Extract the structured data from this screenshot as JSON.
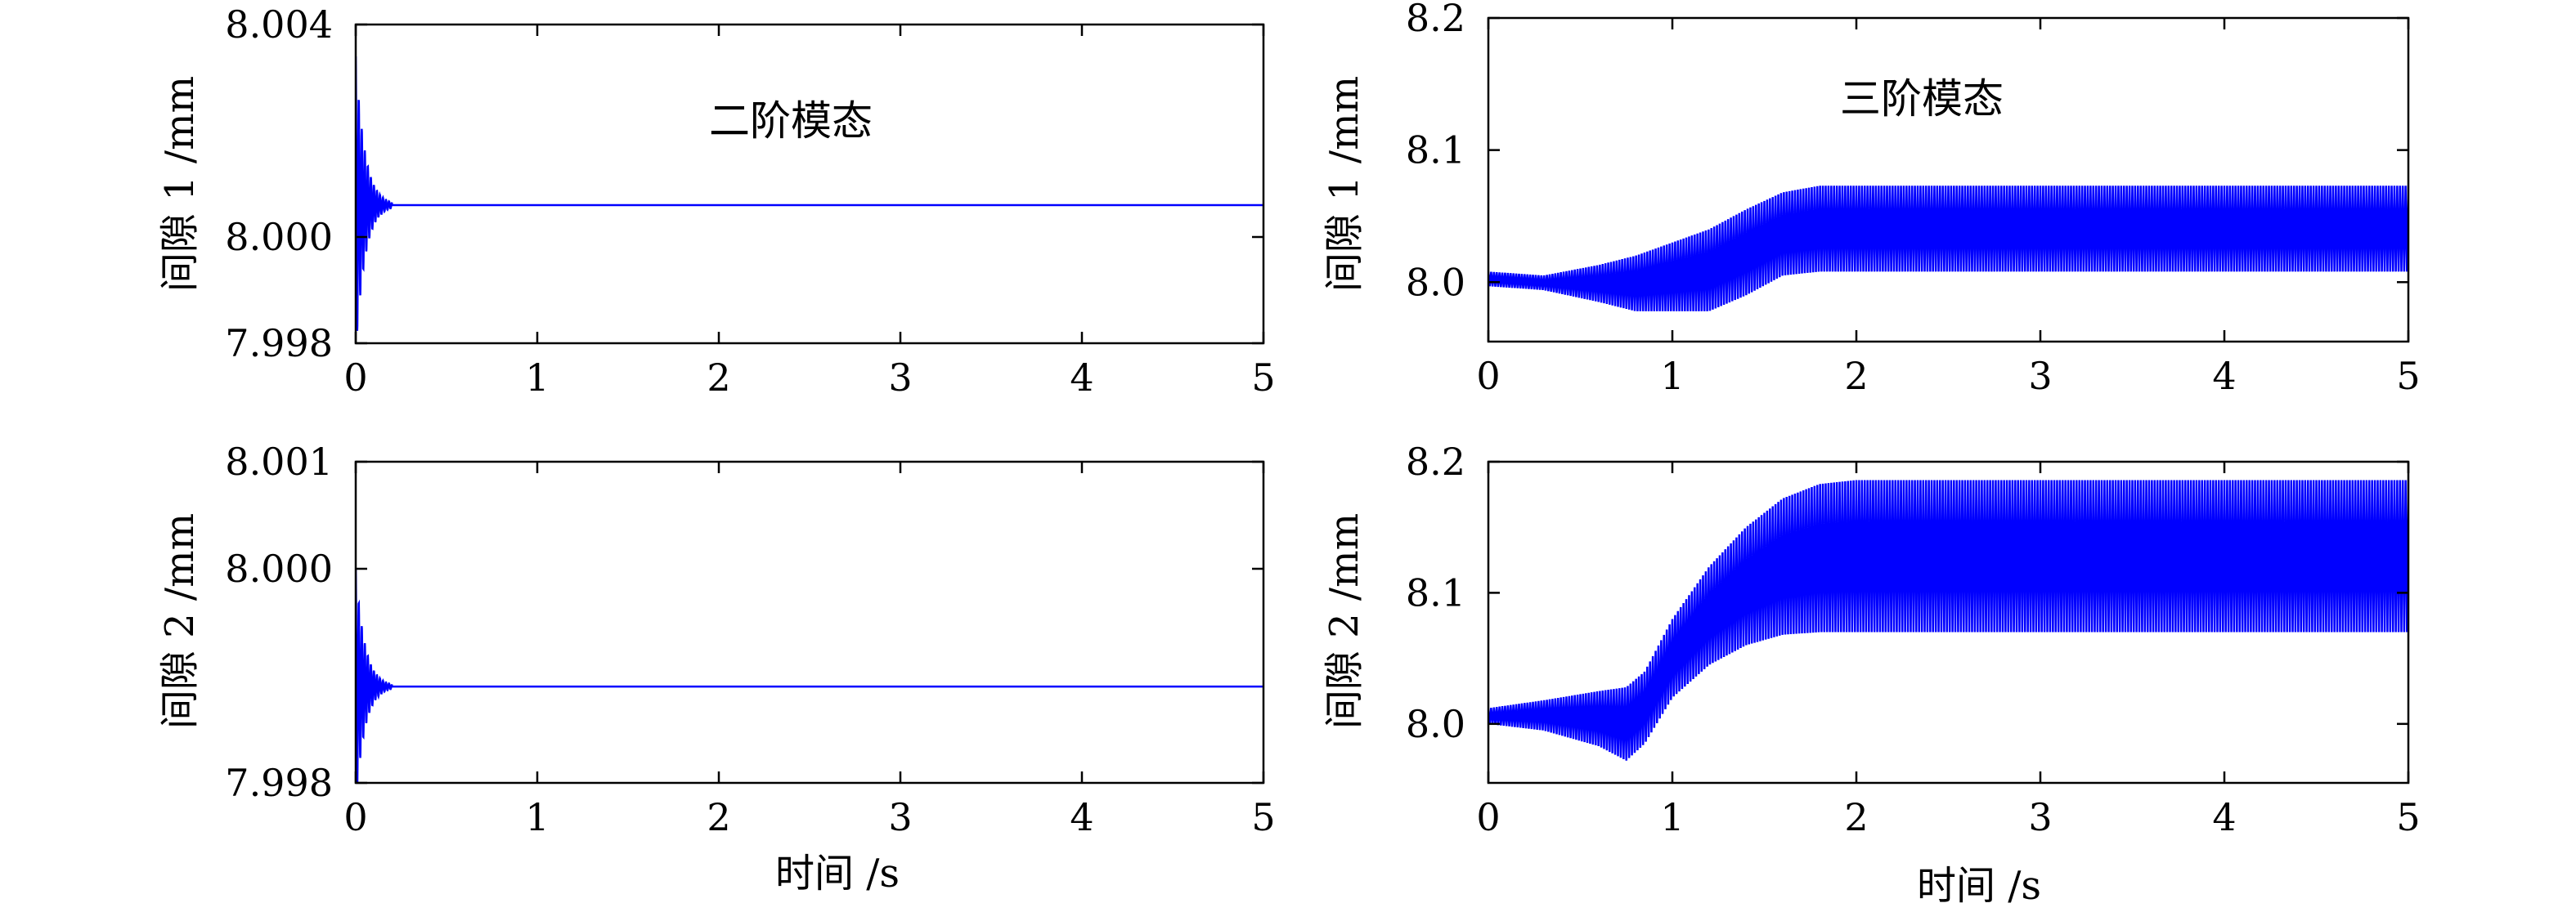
{
  "colors": {
    "series": "#0000ff",
    "axis": "#000000",
    "background": "#ffffff"
  },
  "chart_data": [
    {
      "type": "line",
      "panel": "top-left",
      "title": "",
      "annotation": "二阶模态",
      "xlabel": "",
      "ylabel": "间隙 1 /mm",
      "xlim": [
        0,
        5
      ],
      "ylim": [
        7.998,
        8.004
      ],
      "xticks": [
        "0",
        "1",
        "2",
        "3",
        "4",
        "5"
      ],
      "xtick_values": [
        0,
        1,
        2,
        3,
        4,
        5
      ],
      "yticks": [
        "7.998",
        "8.000",
        "8.004"
      ],
      "ytick_values": [
        7.998,
        8.0,
        8.004
      ],
      "grid": false,
      "series": [
        {
          "kind": "decay",
          "steady": 8.0006,
          "initial_amplitude": 0.0028,
          "decay_time": 0.05,
          "decay_end": 0.2,
          "oscillation_hz": 60
        }
      ]
    },
    {
      "type": "line",
      "panel": "top-right",
      "title": "",
      "annotation": "三阶模态",
      "xlabel": "",
      "ylabel": "间隙 1 /mm",
      "xlim": [
        0,
        5
      ],
      "ylim": [
        7.955,
        8.2
      ],
      "xticks": [
        "0",
        "1",
        "2",
        "3",
        "4",
        "5"
      ],
      "xtick_values": [
        0,
        1,
        2,
        3,
        4,
        5
      ],
      "yticks": [
        "8.0",
        "8.1",
        "8.2"
      ],
      "ytick_values": [
        8.0,
        8.1,
        8.2
      ],
      "grid": false,
      "series": [
        {
          "kind": "envelope",
          "upper": [
            [
              0,
              8.008
            ],
            [
              0.3,
              8.005
            ],
            [
              0.6,
              8.013
            ],
            [
              0.8,
              8.02
            ],
            [
              1.0,
              8.03
            ],
            [
              1.2,
              8.04
            ],
            [
              1.4,
              8.055
            ],
            [
              1.6,
              8.068
            ],
            [
              1.8,
              8.073
            ],
            [
              2.0,
              8.073
            ],
            [
              5,
              8.073
            ]
          ],
          "lower": [
            [
              0,
              7.997
            ],
            [
              0.3,
              7.994
            ],
            [
              0.6,
              7.985
            ],
            [
              0.8,
              7.978
            ],
            [
              1.0,
              7.978
            ],
            [
              1.2,
              7.978
            ],
            [
              1.4,
              7.99
            ],
            [
              1.6,
              8.005
            ],
            [
              1.8,
              8.008
            ],
            [
              2.0,
              8.008
            ],
            [
              5,
              8.008
            ]
          ]
        }
      ]
    },
    {
      "type": "line",
      "panel": "bottom-left",
      "title": "",
      "annotation": "",
      "xlabel": "时间 /s",
      "ylabel": "间隙 2 /mm",
      "xlim": [
        0,
        5
      ],
      "ylim": [
        7.998,
        8.001
      ],
      "xticks": [
        "0",
        "1",
        "2",
        "3",
        "4",
        "5"
      ],
      "xtick_values": [
        0,
        1,
        2,
        3,
        4,
        5
      ],
      "yticks": [
        "7.998",
        "8.000",
        "8.001"
      ],
      "ytick_values": [
        7.998,
        8.0,
        8.001
      ],
      "grid": false,
      "series": [
        {
          "kind": "decay",
          "steady": 7.9989,
          "initial_amplitude": 0.0011,
          "decay_time": 0.05,
          "decay_end": 0.2,
          "oscillation_hz": 60
        }
      ]
    },
    {
      "type": "line",
      "panel": "bottom-right",
      "title": "",
      "annotation": "",
      "xlabel": "时间 /s",
      "ylabel": "间隙 2 /mm",
      "xlim": [
        0,
        5
      ],
      "ylim": [
        7.955,
        8.2
      ],
      "xticks": [
        "0",
        "1",
        "2",
        "3",
        "4",
        "5"
      ],
      "xtick_values": [
        0,
        1,
        2,
        3,
        4,
        5
      ],
      "yticks": [
        "8.0",
        "8.1",
        "8.2"
      ],
      "ytick_values": [
        8.0,
        8.1,
        8.2
      ],
      "grid": false,
      "series": [
        {
          "kind": "envelope",
          "upper": [
            [
              0,
              8.012
            ],
            [
              0.3,
              8.018
            ],
            [
              0.6,
              8.025
            ],
            [
              0.75,
              8.028
            ],
            [
              0.85,
              8.04
            ],
            [
              1.0,
              8.08
            ],
            [
              1.2,
              8.12
            ],
            [
              1.4,
              8.15
            ],
            [
              1.6,
              8.172
            ],
            [
              1.8,
              8.183
            ],
            [
              2.0,
              8.186
            ],
            [
              5,
              8.186
            ]
          ],
          "lower": [
            [
              0,
              8.0
            ],
            [
              0.3,
              7.995
            ],
            [
              0.6,
              7.983
            ],
            [
              0.75,
              7.972
            ],
            [
              0.85,
              7.985
            ],
            [
              1.0,
              8.02
            ],
            [
              1.2,
              8.045
            ],
            [
              1.4,
              8.06
            ],
            [
              1.6,
              8.068
            ],
            [
              1.8,
              8.07
            ],
            [
              2.0,
              8.07
            ],
            [
              5,
              8.07
            ]
          ]
        }
      ]
    }
  ]
}
